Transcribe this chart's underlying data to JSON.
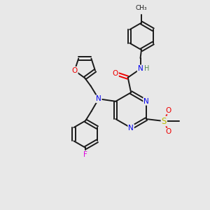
{
  "background_color": "#e8e8e8",
  "bond_color": "#1a1a1a",
  "atom_colors": {
    "N": "#0000ee",
    "O": "#ee0000",
    "F": "#dd00dd",
    "S": "#bbbb00",
    "C": "#1a1a1a",
    "H": "#558855"
  }
}
